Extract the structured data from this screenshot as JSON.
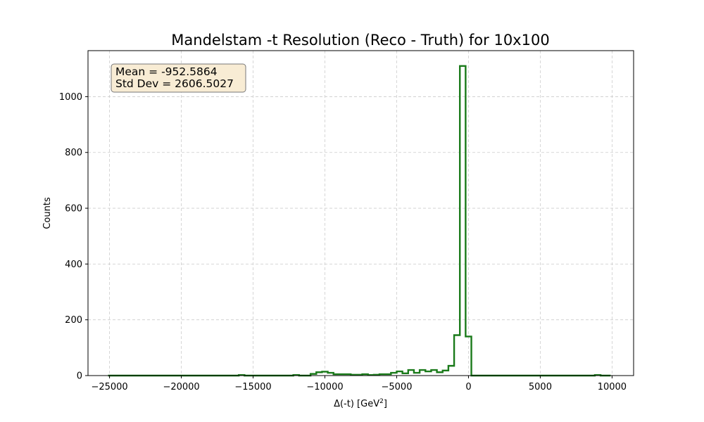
{
  "chart_data": {
    "type": "histogram",
    "title": "Mandelstam -t Resolution (Reco - Truth) for 10x100",
    "xlabel": "Δ(-t) [GeV",
    "xlabel_sup": "2",
    "xlabel_suffix": "]",
    "ylabel": "Counts",
    "xlim": [
      -26500,
      11500
    ],
    "ylim": [
      0,
      1165
    ],
    "xticks": [
      -25000,
      -20000,
      -15000,
      -10000,
      -5000,
      0,
      5000,
      10000
    ],
    "yticks": [
      0,
      200,
      400,
      600,
      800,
      1000
    ],
    "grid": true,
    "grid_style": "dashed",
    "series": [
      {
        "color": "#1a7a1a",
        "histtype": "step",
        "bin_edges": [
          -25100,
          -16000,
          -15600,
          -12200,
          -11800,
          -11000,
          -10600,
          -10200,
          -9800,
          -9400,
          -9000,
          -8200,
          -7400,
          -7000,
          -6600,
          -6200,
          -5400,
          -5000,
          -4600,
          -4200,
          -3800,
          -3400,
          -3000,
          -2600,
          -2200,
          -1800,
          -1400,
          -1000,
          -600,
          -200,
          200,
          400,
          8800,
          9200,
          9900
        ],
        "counts": [
          0,
          2,
          0,
          2,
          0,
          6,
          12,
          14,
          10,
          5,
          5,
          3,
          5,
          2,
          3,
          5,
          10,
          15,
          8,
          20,
          10,
          20,
          15,
          20,
          12,
          18,
          35,
          145,
          1110,
          140,
          0,
          0,
          2,
          0
        ]
      }
    ],
    "stats_box": {
      "line1": "Mean = -952.5864",
      "line2": "Std Dev = 2606.5027",
      "fill": "#f8ecd4",
      "edge": "#777777"
    }
  }
}
